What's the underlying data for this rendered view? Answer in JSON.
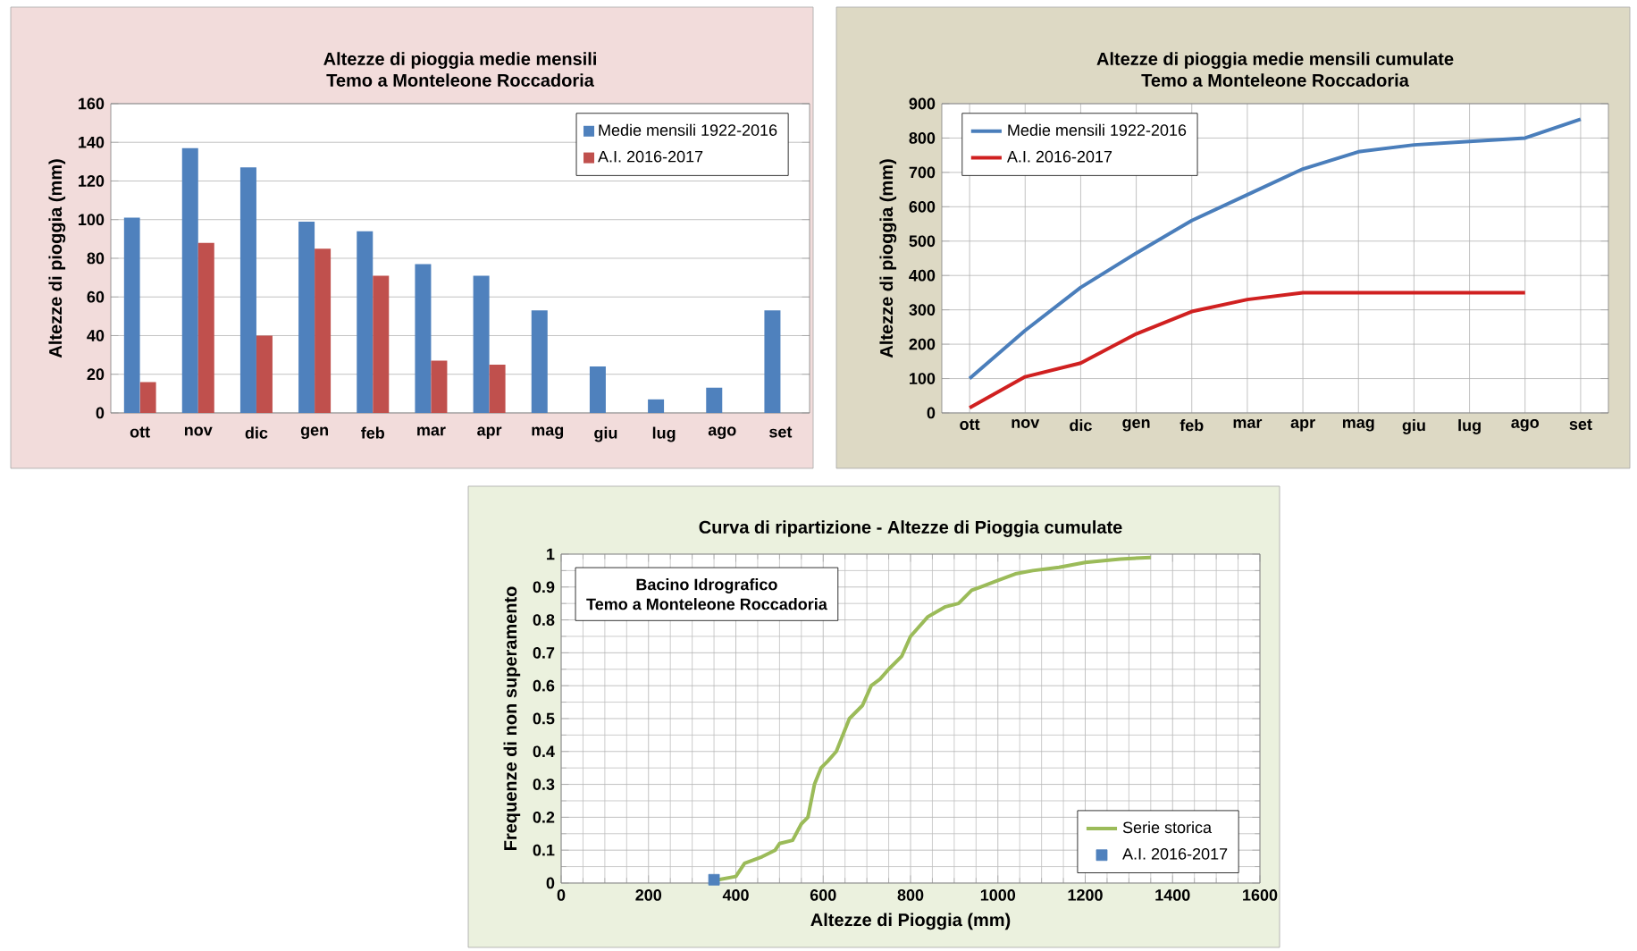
{
  "chart_data": [
    {
      "type": "bar",
      "title": "Altezze di pioggia  medie mensili",
      "subtitle": "Temo a Monteleone  Roccadoria",
      "ylabel": "Altezze di pioggia (mm)",
      "categories": [
        "ott",
        "nov",
        "dic",
        "gen",
        "feb",
        "mar",
        "apr",
        "mag",
        "giu",
        "lug",
        "ago",
        "set"
      ],
      "series": [
        {
          "name": "Medie mensili 1922-2016",
          "color": "#4f81bd",
          "values": [
            101,
            137,
            127,
            99,
            94,
            77,
            71,
            53,
            24,
            7,
            13,
            53
          ]
        },
        {
          "name": "A.I. 2016-2017",
          "color": "#c0504d",
          "values": [
            16,
            88,
            40,
            85,
            71,
            27,
            25,
            null,
            null,
            null,
            null,
            null
          ]
        }
      ],
      "ylim": [
        0,
        160
      ],
      "yticks": [
        0,
        20,
        40,
        60,
        80,
        100,
        120,
        140,
        160
      ],
      "grid": "y",
      "legend": "top right"
    },
    {
      "type": "line",
      "title": "Altezze di pioggia  medie mensili cumulate",
      "subtitle": "Temo a Monteleone  Roccadoria",
      "ylabel": "Altezze di pioggia (mm)",
      "categories": [
        "ott",
        "nov",
        "dic",
        "gen",
        "feb",
        "mar",
        "apr",
        "mag",
        "giu",
        "lug",
        "ago",
        "set"
      ],
      "series": [
        {
          "name": "Medie mensili 1922-2016",
          "color": "#4a7ebb",
          "values": [
            100,
            240,
            365,
            465,
            560,
            635,
            710,
            760,
            780,
            790,
            800,
            855
          ]
        },
        {
          "name": "A.I. 2016-2017",
          "color": "#d02020",
          "values": [
            15,
            105,
            145,
            230,
            295,
            330,
            350,
            350,
            350,
            350,
            350,
            null
          ]
        }
      ],
      "ylim": [
        0,
        900
      ],
      "yticks": [
        0,
        100,
        200,
        300,
        400,
        500,
        600,
        700,
        800,
        900
      ],
      "grid": true,
      "legend": "top left"
    },
    {
      "type": "line",
      "title": "Curva di ripartizione - Altezze di Pioggia cumulate",
      "xlabel": "Altezze di Pioggia (mm)",
      "ylabel": "Frequenze di non superamento",
      "annotations": [
        "Bacino Idrografico",
        "Temo a Monteleone Roccadoria"
      ],
      "series": [
        {
          "name": "Serie storica",
          "type": "line",
          "color": "#9bbb59",
          "x": [
            360,
            400,
            420,
            460,
            490,
            500,
            530,
            550,
            565,
            580,
            595,
            610,
            630,
            660,
            690,
            710,
            730,
            750,
            780,
            800,
            840,
            880,
            910,
            940,
            960,
            1000,
            1040,
            1080,
            1140,
            1200,
            1280,
            1350
          ],
          "values": [
            0.01,
            0.02,
            0.06,
            0.08,
            0.1,
            0.12,
            0.13,
            0.18,
            0.2,
            0.3,
            0.35,
            0.37,
            0.4,
            0.5,
            0.54,
            0.6,
            0.62,
            0.65,
            0.69,
            0.75,
            0.81,
            0.84,
            0.85,
            0.89,
            0.9,
            0.92,
            0.94,
            0.95,
            0.96,
            0.975,
            0.985,
            0.99
          ]
        },
        {
          "name": "A.I. 2016-2017",
          "type": "scatter",
          "marker": "square",
          "color": "#4f81bd",
          "x": [
            350
          ],
          "values": [
            0.01
          ]
        }
      ],
      "xlim": [
        0,
        1600
      ],
      "xticks": [
        0,
        200,
        400,
        600,
        800,
        1000,
        1200,
        1400,
        1600
      ],
      "ylim": [
        0,
        1
      ],
      "yticks": [
        0,
        0.1,
        0.2,
        0.3,
        0.4,
        0.5,
        0.6,
        0.7,
        0.8,
        0.9,
        1
      ],
      "grid": true,
      "legend": "bottom right"
    }
  ]
}
